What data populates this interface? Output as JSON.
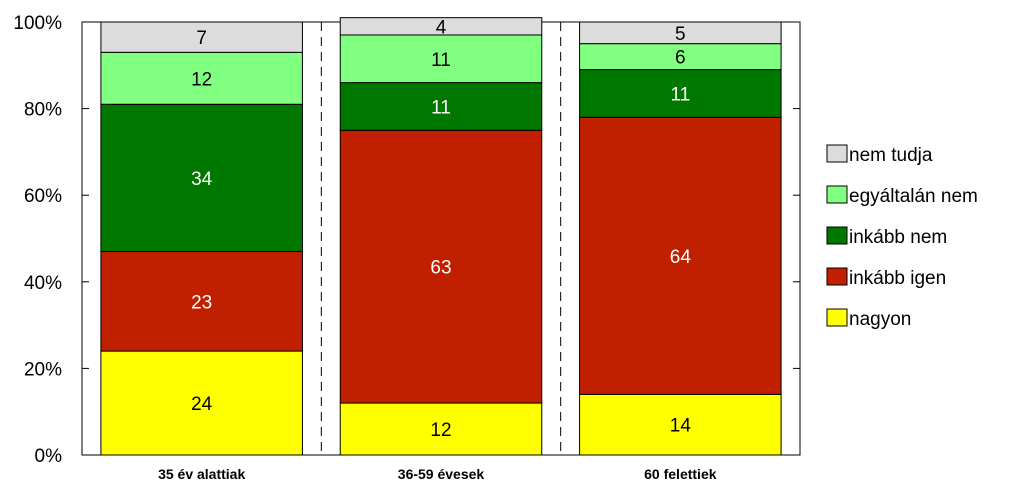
{
  "chart_data": {
    "type": "bar",
    "stacked": true,
    "percent": true,
    "categories": [
      "35 év alattiak",
      "36-59 évesek",
      "60 felettiek"
    ],
    "series": [
      {
        "name": "nagyon",
        "color": "#ffff00",
        "label_color": "#000000",
        "values": [
          24,
          12,
          14
        ]
      },
      {
        "name": "inkább igen",
        "color": "#c02000",
        "label_color": "#ffffff",
        "values": [
          23,
          63,
          64
        ]
      },
      {
        "name": "inkább nem",
        "color": "#007800",
        "label_color": "#ffffff",
        "values": [
          34,
          11,
          11
        ]
      },
      {
        "name": "egyáltalán nem",
        "color": "#80ff80",
        "label_color": "#000000",
        "values": [
          12,
          11,
          6
        ]
      },
      {
        "name": "nem tudja",
        "color": "#dcdcdc",
        "label_color": "#000000",
        "values": [
          7,
          4,
          5
        ]
      }
    ],
    "y_ticks": [
      "0%",
      "20%",
      "40%",
      "60%",
      "80%",
      "100%"
    ],
    "ylim": [
      0,
      100
    ],
    "grid": false,
    "legend_position": "right",
    "legend_order": [
      "nem tudja",
      "egyáltalán nem",
      "inkább nem",
      "inkább igen",
      "nagyon"
    ]
  }
}
